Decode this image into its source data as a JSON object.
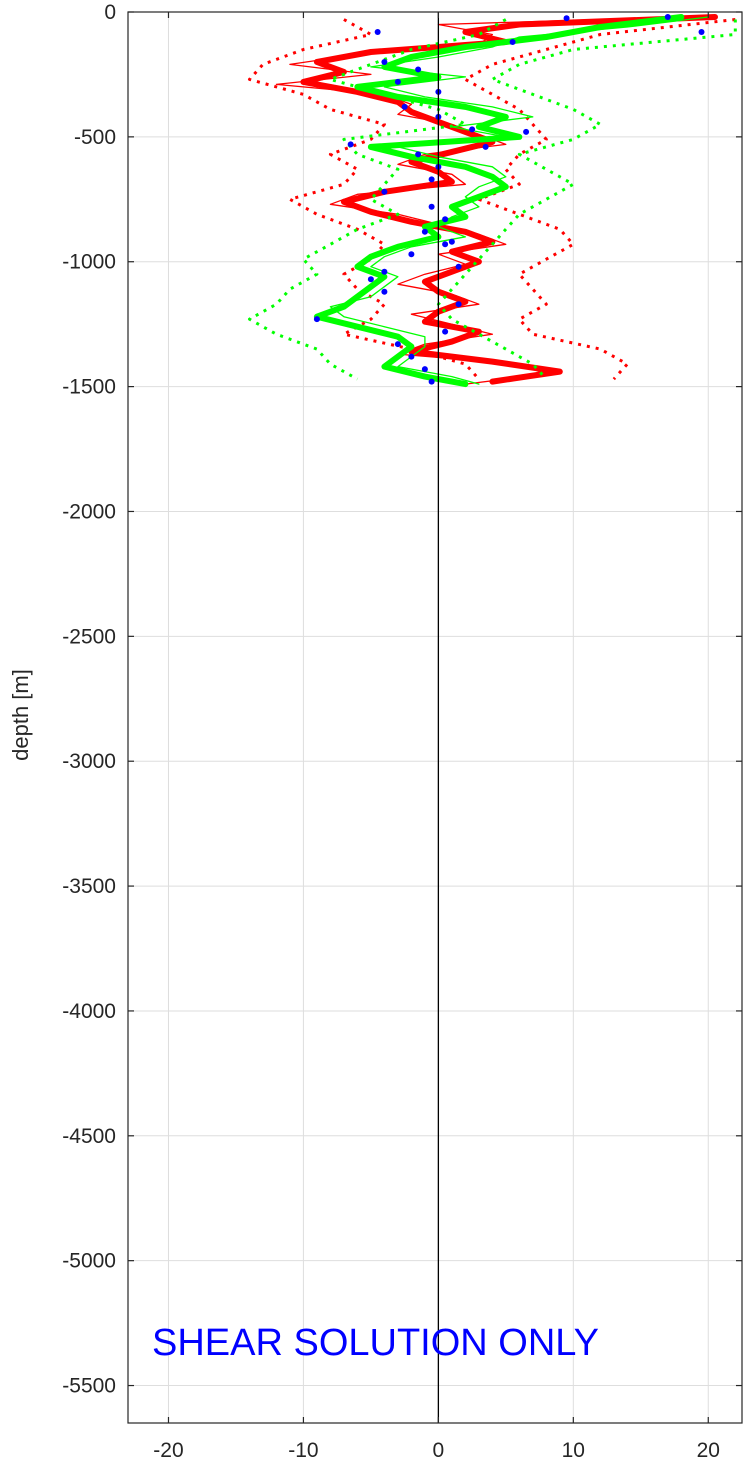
{
  "chart_data": {
    "type": "line",
    "ylabel": "depth [m]",
    "xlabel": "",
    "xlim": [
      -23,
      22.5
    ],
    "ylim": [
      -5650,
      0
    ],
    "x_ticks": [
      -20,
      -10,
      0,
      10,
      20
    ],
    "y_ticks": [
      0,
      -500,
      -1000,
      -1500,
      -2000,
      -2500,
      -3000,
      -3500,
      -4000,
      -4500,
      -5000,
      -5500
    ],
    "x_tick_labels": [
      "-20",
      "-10",
      "0",
      "10",
      "20"
    ],
    "y_tick_labels": [
      "0",
      "-500",
      "-1000",
      "-1500",
      "-2000",
      "-2500",
      "-3000",
      "-3500",
      "-4000",
      "-4500",
      "-5000",
      "-5500"
    ],
    "grid": true,
    "annotation": "SHEAR SOLUTION ONLY",
    "colors": {
      "red": "#ff0000",
      "green": "#00ff00",
      "blue": "#0000ff",
      "zero_line": "#000000"
    },
    "series": [
      {
        "color": "red",
        "style": "thick",
        "depth": [
          -20,
          -50,
          -80,
          -120,
          -160,
          -200,
          -240,
          -280,
          -320,
          -360,
          -400,
          -440,
          -480,
          -520,
          -560,
          -600,
          -640,
          -680,
          -720,
          -760,
          -800,
          -840,
          -880,
          -920,
          -960,
          -1000,
          -1040,
          -1080,
          -1120,
          -1160,
          -1200,
          -1240,
          -1280,
          -1320,
          -1360,
          -1400,
          -1440,
          -1480
        ],
        "values": [
          20.5,
          6,
          2,
          5,
          -5,
          -9,
          -7,
          -10,
          -6,
          -3,
          -2,
          0,
          2,
          4,
          1,
          -2,
          0,
          1,
          -4,
          -7,
          -5,
          -2,
          2,
          4,
          1,
          3,
          1,
          -1,
          0,
          2,
          0,
          -1,
          3,
          1,
          -2,
          4,
          9,
          4
        ]
      },
      {
        "color": "red",
        "style": "thin",
        "depth": [
          -20,
          -50,
          -90,
          -130,
          -170,
          -210,
          -250,
          -290,
          -330,
          -370,
          -410,
          -450,
          -490,
          -530,
          -570,
          -610,
          -650,
          -690,
          -730,
          -770,
          -810,
          -850,
          -890,
          -930,
          -970,
          -1010,
          -1050,
          -1090,
          -1130,
          -1170,
          -1210,
          -1250,
          -1290,
          -1330,
          -1370,
          -1410,
          -1450,
          -1490
        ],
        "values": [
          18,
          0,
          4,
          3,
          -6,
          -11,
          -5,
          -12,
          -4,
          -2,
          -3,
          1,
          3,
          5,
          -1,
          -3,
          1,
          2,
          -6,
          -8,
          -3,
          0,
          3,
          5,
          0,
          2,
          -1,
          -3,
          1,
          3,
          -2,
          1,
          4,
          -1,
          -3,
          6,
          8,
          2
        ]
      },
      {
        "color": "red",
        "style": "dotted",
        "depth": [
          -30,
          -90,
          -150,
          -210,
          -270,
          -330,
          -390,
          -450,
          -510,
          -570,
          -630,
          -690,
          -750,
          -810,
          -870,
          -930,
          -990,
          -1050,
          -1110,
          -1170,
          -1230,
          -1290,
          -1350,
          -1410,
          -1470
        ],
        "values": [
          -7,
          -5,
          -10,
          -13,
          -14,
          -10,
          -8,
          -4,
          -5,
          -8,
          -6,
          -7,
          -11,
          -9,
          -6,
          -4,
          -5,
          -7,
          -6,
          -4,
          -5,
          -7,
          -2,
          2,
          3
        ]
      },
      {
        "color": "red",
        "style": "dotted",
        "depth": [
          -30,
          -90,
          -150,
          -210,
          -270,
          -330,
          -390,
          -450,
          -510,
          -570,
          -630,
          -690,
          -750,
          -810,
          -870,
          -930,
          -990,
          -1050,
          -1110,
          -1170,
          -1230,
          -1290,
          -1350,
          -1410,
          -1470
        ],
        "values": [
          22,
          12,
          8,
          4,
          2,
          4,
          6,
          7,
          8,
          6,
          5,
          6,
          3,
          6,
          9,
          10,
          8,
          6,
          7,
          8,
          6,
          7,
          12,
          14,
          13
        ]
      },
      {
        "color": "green",
        "style": "thick",
        "depth": [
          -20,
          -60,
          -100,
          -140,
          -180,
          -220,
          -260,
          -300,
          -340,
          -380,
          -420,
          -460,
          -500,
          -540,
          -580,
          -620,
          -660,
          -700,
          -740,
          -780,
          -820,
          -860,
          -900,
          -940,
          -980,
          -1020,
          -1060,
          -1100,
          -1140,
          -1180,
          -1220,
          -1260,
          -1300,
          -1340,
          -1380,
          -1420,
          -1460,
          -1490
        ],
        "values": [
          18,
          12,
          8,
          2,
          -2,
          -4,
          0,
          -6,
          -3,
          2,
          5,
          3,
          6,
          -5,
          -2,
          2,
          4,
          5,
          3,
          1,
          2,
          -1,
          0,
          -3,
          -5,
          -6,
          -4,
          -5,
          -6,
          -7,
          -9,
          -6,
          -3,
          -2,
          -3,
          -4,
          -1,
          2
        ]
      },
      {
        "color": "green",
        "style": "thin",
        "depth": [
          -20,
          -60,
          -100,
          -140,
          -180,
          -220,
          -260,
          -300,
          -340,
          -380,
          -420,
          -460,
          -500,
          -540,
          -580,
          -620,
          -660,
          -700,
          -740,
          -780,
          -820,
          -860,
          -900,
          -940,
          -980,
          -1020,
          -1060,
          -1100,
          -1140,
          -1180,
          -1220,
          -1260,
          -1300,
          -1340,
          -1380,
          -1420,
          -1460,
          -1490
        ],
        "values": [
          20,
          14,
          6,
          4,
          0,
          -5,
          2,
          -4,
          -1,
          4,
          7,
          1,
          5,
          -3,
          0,
          4,
          5,
          3,
          2,
          3,
          1,
          0,
          2,
          -2,
          -4,
          -5,
          -3,
          -4,
          -5,
          -8,
          -7,
          -4,
          -1,
          -1,
          -2,
          -3,
          1,
          3
        ]
      },
      {
        "color": "green",
        "style": "dotted",
        "depth": [
          -30,
          -90,
          -150,
          -210,
          -270,
          -330,
          -390,
          -450,
          -510,
          -570,
          -630,
          -690,
          -750,
          -810,
          -870,
          -930,
          -990,
          -1050,
          -1110,
          -1170,
          -1230,
          -1290,
          -1350,
          -1410,
          -1470
        ],
        "values": [
          5,
          3,
          -2,
          -5,
          -8,
          -4,
          0,
          2,
          -7,
          -6,
          -3,
          -4,
          -5,
          -3,
          -6,
          -8,
          -10,
          -9,
          -11,
          -12,
          -14,
          -12,
          -9,
          -8,
          -6
        ]
      },
      {
        "color": "green",
        "style": "dotted",
        "depth": [
          -30,
          -90,
          -150,
          -210,
          -270,
          -330,
          -390,
          -450,
          -510,
          -570,
          -630,
          -690,
          -750,
          -810,
          -870,
          -930,
          -990,
          -1050,
          -1110,
          -1170,
          -1230,
          -1290,
          -1350,
          -1410,
          -1470
        ],
        "values": [
          22,
          22,
          10,
          6,
          4,
          7,
          10,
          12,
          10,
          6,
          8,
          10,
          8,
          6,
          5,
          4,
          3,
          2,
          1,
          0,
          1,
          3,
          5,
          7,
          8
        ]
      }
    ],
    "points": {
      "color": "blue",
      "depth": [
        -20,
        -80,
        -120,
        -200,
        -230,
        -280,
        -320,
        -380,
        -420,
        -470,
        -530,
        -570,
        -620,
        -670,
        -720,
        -780,
        -830,
        -880,
        -920,
        -970,
        -1020,
        -1070,
        -1120,
        -1170,
        -1230,
        -1280,
        -1330,
        -1380,
        -1430,
        -1480,
        -25,
        -80,
        -480,
        -540,
        -930,
        -1040
      ],
      "values": [
        17,
        -4.5,
        5.5,
        -4,
        -1.5,
        -3,
        0,
        -2.5,
        0,
        2.5,
        -6.5,
        -1.5,
        0,
        -0.5,
        -4,
        -0.5,
        0.5,
        -1,
        1,
        -2,
        1.5,
        -5,
        -4,
        1.5,
        -9,
        0.5,
        -3,
        -2,
        -1,
        -0.5,
        9.5,
        19.5,
        6.5,
        3.5,
        0.5,
        -4
      ]
    }
  }
}
